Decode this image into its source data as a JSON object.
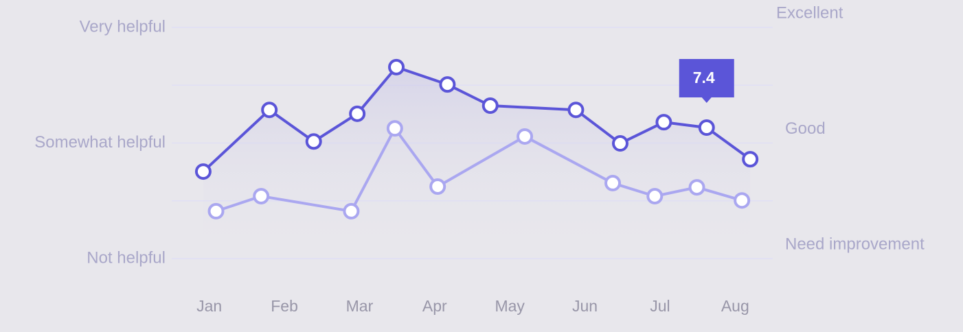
{
  "chart_data": {
    "type": "line",
    "xlim": [
      -0.5,
      7.5
    ],
    "xticks": [
      {
        "value": 0,
        "label": "Jan"
      },
      {
        "value": 1,
        "label": "Feb"
      },
      {
        "value": 2,
        "label": "Mar"
      },
      {
        "value": 3,
        "label": "Apr"
      },
      {
        "value": 4,
        "label": "May"
      },
      {
        "value": 5,
        "label": "Jun"
      },
      {
        "value": 6,
        "label": "Jul"
      },
      {
        "value": 7,
        "label": "Aug"
      }
    ],
    "ylim": [
      4,
      10
    ],
    "yticks": [
      {
        "value": 10,
        "label": "Very helpful"
      },
      {
        "value": 7,
        "label": "Somewhat helpful"
      },
      {
        "value": 4,
        "label": "Not helpful"
      }
    ],
    "minor_yticks": [
      8.5,
      5.5
    ],
    "y2lim": [
      4,
      10
    ],
    "y2ticks": [
      {
        "value": 10,
        "label": "Excellent"
      },
      {
        "value": 7,
        "label": "Good"
      },
      {
        "value": 4,
        "label": "Need improvement"
      }
    ],
    "grid": true,
    "series": [
      {
        "color": "#5b55d8",
        "x": [
          -0.08,
          0.8,
          1.39,
          1.97,
          2.49,
          3.17,
          3.74,
          4.88,
          5.47,
          6.05,
          6.62,
          7.2
        ],
        "values": [
          6.26,
          7.86,
          7.04,
          7.76,
          8.97,
          8.52,
          7.97,
          7.86,
          6.99,
          7.54,
          7.4,
          6.58
        ],
        "value_labels": [
          null,
          null,
          null,
          null,
          null,
          null,
          null,
          null,
          null,
          null,
          "7.4",
          null
        ]
      },
      {
        "color": "#aaa7f0",
        "x": [
          0.09,
          0.69,
          1.89,
          2.47,
          3.04,
          4.2,
          5.37,
          5.93,
          6.49,
          7.09
        ],
        "values": [
          5.23,
          5.62,
          5.23,
          7.38,
          5.87,
          7.17,
          5.96,
          5.62,
          5.85,
          5.51
        ]
      }
    ]
  }
}
